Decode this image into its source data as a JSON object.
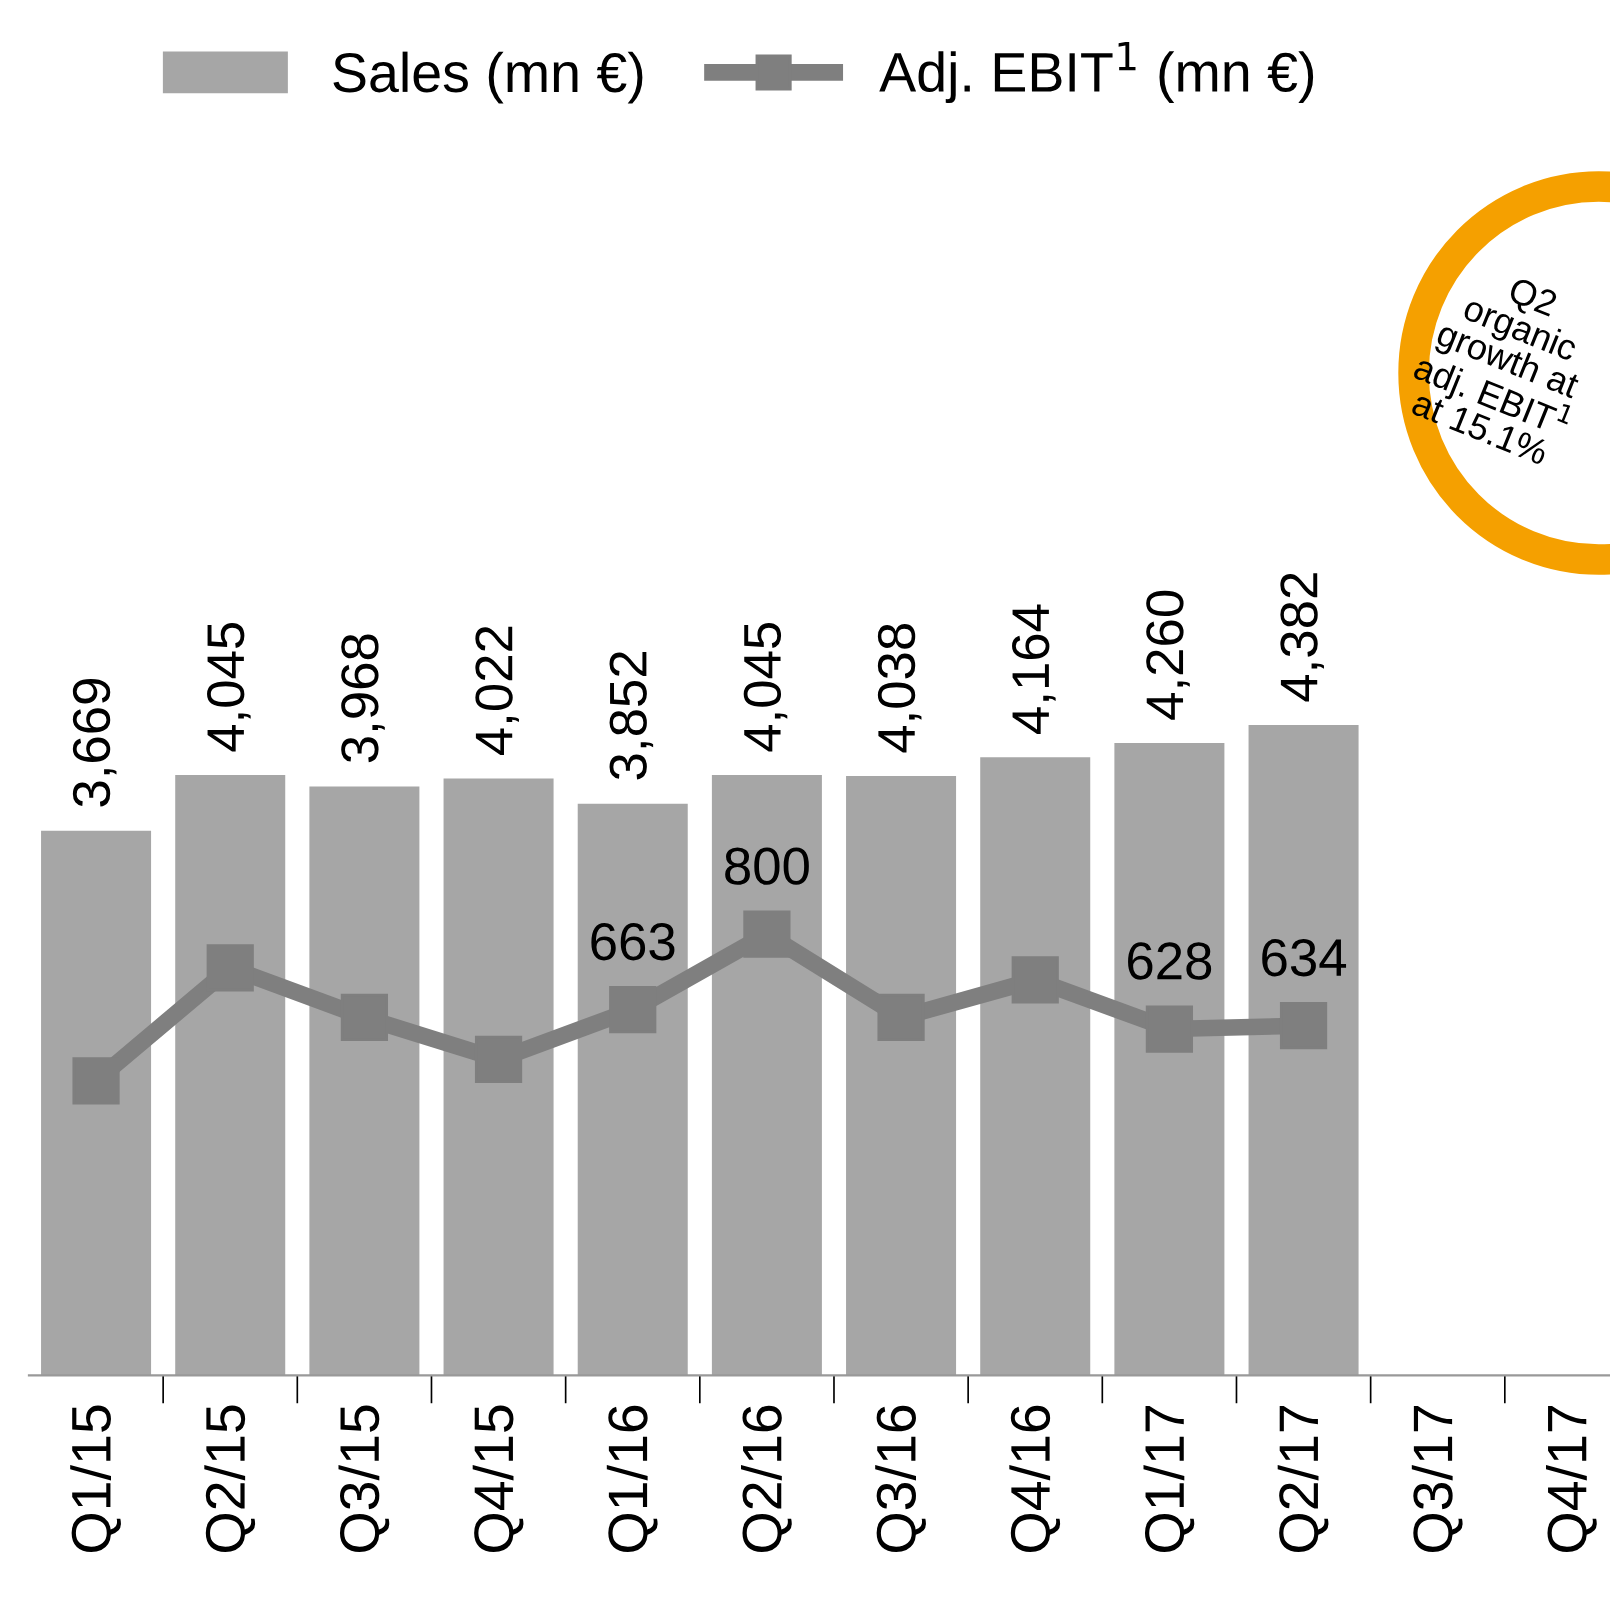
{
  "chart_data": {
    "type": "bar",
    "categories": [
      "Q1/15",
      "Q2/15",
      "Q3/15",
      "Q4/15",
      "Q1/16",
      "Q2/16",
      "Q3/16",
      "Q4/16",
      "Q1/17",
      "Q2/17",
      "Q3/17",
      "Q4/17"
    ],
    "series": [
      {
        "name": "Sales (mn €)",
        "color": "#a6a6a6",
        "values": [
          3669,
          4045,
          3968,
          4022,
          3852,
          4045,
          4038,
          4164,
          4260,
          4382,
          null,
          null
        ],
        "value_labels": [
          "3,669",
          "4,045",
          "3,968",
          "4,022",
          "3,852",
          "4,045",
          "4,038",
          "4,164",
          "4,260",
          "4,382",
          null,
          null
        ]
      },
      {
        "name": "Adj. EBIT$^{1}$ (mn €)",
        "type": "line",
        "axis": "y2",
        "color": "#7f7f7f",
        "marker": "square",
        "values": [
          534,
          739,
          649,
          573,
          663,
          800,
          649,
          717,
          628,
          634,
          null,
          null
        ],
        "value_labels": [
          null,
          null,
          null,
          null,
          "663",
          "800",
          null,
          null,
          "628",
          "634",
          null,
          null
        ]
      }
    ],
    "tick_labels": "x",
    "legend": "top",
    "grid": false,
    "annotations": [
      "Q2\norganic\ngrowth at\nadj. EBIT$^{1}$\nat 15.1%"
    ]
  }
}
